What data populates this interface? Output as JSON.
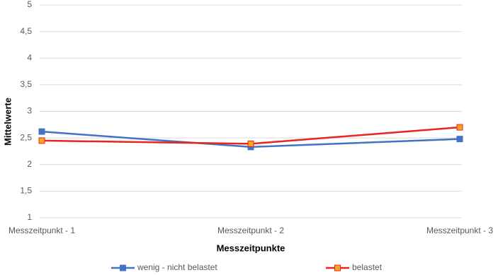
{
  "chart_data": {
    "type": "line",
    "x_label": "Messzeitpunkte",
    "y_label": "Mittelwerte",
    "categories": [
      "Messzeitpunkt - 1",
      "Messzeitpunkt - 2",
      "Messzeitpunkt - 3"
    ],
    "series": [
      {
        "name": "wenig - nicht belastet",
        "color": "#4472c4",
        "marker_fill": "#4472c4",
        "values": [
          2.62,
          2.33,
          2.48
        ]
      },
      {
        "name": "belastet",
        "color": "#e8251f",
        "marker_fill": "#f5a623",
        "values": [
          2.45,
          2.39,
          2.7
        ]
      }
    ],
    "ylim": [
      1,
      5
    ],
    "yticks": [
      1,
      {
        "value": 1.5,
        "label": "1,5"
      },
      2,
      {
        "value": 2.5,
        "label": "2,5"
      },
      3,
      {
        "value": 3.5,
        "label": "3,5"
      },
      4,
      {
        "value": 4.5,
        "label": "4,5"
      },
      5
    ],
    "grid": true,
    "legend": "bottom"
  }
}
